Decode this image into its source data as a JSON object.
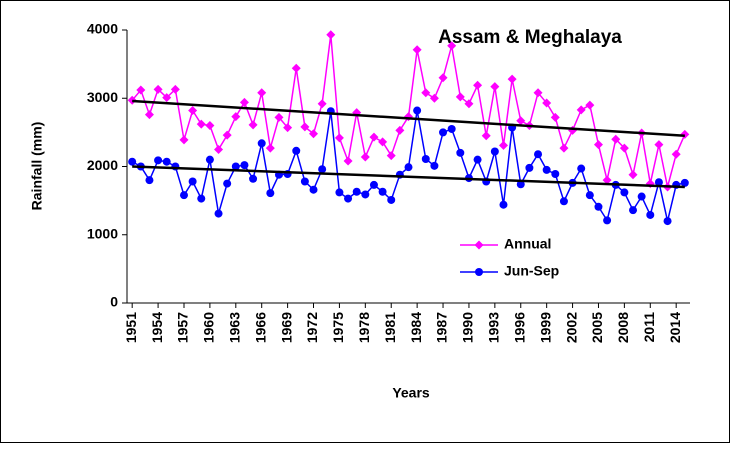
{
  "chart_data": {
    "type": "line",
    "title": "Assam & Meghalaya",
    "x_label": "Years",
    "y_label": "Rainfall (mm)",
    "x": [
      1951,
      1952,
      1953,
      1954,
      1955,
      1956,
      1957,
      1958,
      1959,
      1960,
      1961,
      1962,
      1963,
      1964,
      1965,
      1966,
      1967,
      1968,
      1969,
      1970,
      1971,
      1972,
      1973,
      1974,
      1975,
      1976,
      1977,
      1978,
      1979,
      1980,
      1981,
      1982,
      1983,
      1984,
      1985,
      1986,
      1987,
      1988,
      1989,
      1990,
      1991,
      1992,
      1993,
      1994,
      1995,
      1996,
      1997,
      1998,
      1999,
      2000,
      2001,
      2002,
      2003,
      2004,
      2005,
      2006,
      2007,
      2008,
      2009,
      2010,
      2011,
      2012,
      2013,
      2014,
      2015
    ],
    "series": [
      {
        "name": "Annual",
        "color": "#ff00ff",
        "marker": "diamond",
        "values": [
          2970,
          3120,
          2760,
          3130,
          3010,
          3130,
          2390,
          2820,
          2620,
          2600,
          2250,
          2460,
          2730,
          2940,
          2610,
          3080,
          2270,
          2720,
          2570,
          3440,
          2580,
          2480,
          2920,
          3930,
          2420,
          2080,
          2790,
          2140,
          2430,
          2360,
          2160,
          2530,
          2730,
          3710,
          3080,
          3000,
          3300,
          3770,
          3020,
          2920,
          3190,
          2450,
          3170,
          2310,
          3280,
          2670,
          2600,
          3080,
          2930,
          2720,
          2270,
          2530,
          2830,
          2900,
          2320,
          1800,
          2400,
          2270,
          1880,
          2490,
          1750,
          2320,
          1700,
          2180,
          2470
        ]
      },
      {
        "name": "Jun-Sep",
        "color": "#0000ff",
        "marker": "circle",
        "values": [
          2070,
          2000,
          1800,
          2090,
          2070,
          2000,
          1580,
          1780,
          1530,
          2100,
          1310,
          1750,
          2000,
          2020,
          1820,
          2340,
          1610,
          1880,
          1890,
          2230,
          1780,
          1660,
          1960,
          2810,
          1620,
          1530,
          1630,
          1590,
          1730,
          1630,
          1510,
          1880,
          1990,
          2820,
          2110,
          2010,
          2500,
          2550,
          2200,
          1830,
          2100,
          1780,
          2220,
          1440,
          2570,
          1740,
          1980,
          2180,
          1950,
          1890,
          1490,
          1760,
          1970,
          1580,
          1410,
          1210,
          1730,
          1620,
          1360,
          1560,
          1290,
          1770,
          1200,
          1730,
          1760
        ]
      }
    ],
    "trend_lines": [
      {
        "color": "#000000",
        "x": [
          1951,
          2015
        ],
        "values": [
          2960,
          2450
        ]
      },
      {
        "color": "#000000",
        "x": [
          1951,
          2015
        ],
        "values": [
          2000,
          1700
        ]
      }
    ],
    "xlim": [
      1950.4,
      2015.6
    ],
    "xticks": [
      1951,
      1954,
      1957,
      1960,
      1963,
      1966,
      1969,
      1972,
      1975,
      1978,
      1981,
      1984,
      1987,
      1990,
      1993,
      1996,
      1999,
      2002,
      2005,
      2008,
      2011,
      2014
    ],
    "ylim": [
      0,
      4000
    ],
    "yticks": [
      0,
      1000,
      2000,
      3000,
      4000
    ],
    "legend": "right"
  }
}
